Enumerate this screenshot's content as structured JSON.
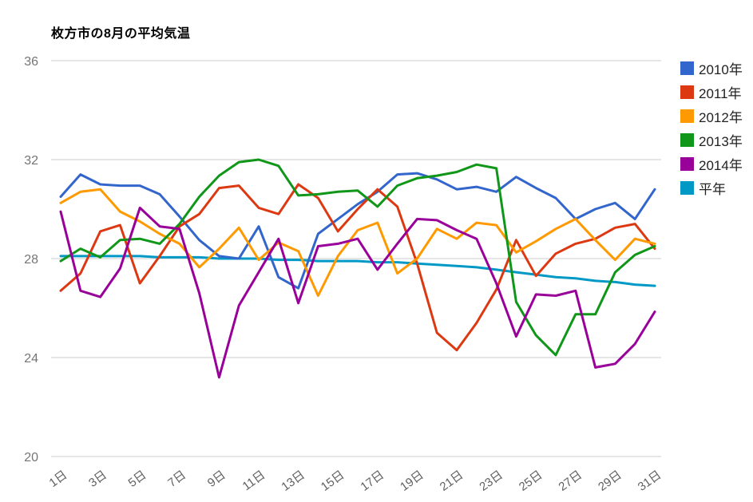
{
  "title": "枚方市の8月の平均気温",
  "chart_data": {
    "type": "line",
    "categories": [
      "1日",
      "2日",
      "3日",
      "4日",
      "5日",
      "6日",
      "7日",
      "8日",
      "9日",
      "10日",
      "11日",
      "12日",
      "13日",
      "14日",
      "15日",
      "16日",
      "17日",
      "18日",
      "19日",
      "20日",
      "21日",
      "22日",
      "23日",
      "24日",
      "25日",
      "26日",
      "27日",
      "28日",
      "29日",
      "30日",
      "31日"
    ],
    "x_tick_shown_every": 2,
    "series": [
      {
        "name": "2010年",
        "color": "#3366CC",
        "values": [
          30.5,
          31.4,
          31.0,
          30.95,
          30.95,
          30.6,
          29.7,
          28.75,
          28.1,
          28.0,
          29.3,
          27.25,
          26.8,
          29.0,
          29.6,
          30.2,
          30.7,
          31.4,
          31.45,
          31.2,
          30.8,
          30.9,
          30.7,
          31.3,
          30.85,
          30.45,
          29.6,
          30.0,
          30.25,
          29.6,
          30.8
        ]
      },
      {
        "name": "2011年",
        "color": "#DC3912",
        "values": [
          26.7,
          27.4,
          29.1,
          29.35,
          27.0,
          28.1,
          29.3,
          29.8,
          30.85,
          30.95,
          30.05,
          29.8,
          31.0,
          30.45,
          29.1,
          30.0,
          30.8,
          30.1,
          27.8,
          25.0,
          24.3,
          25.4,
          26.75,
          28.75,
          27.3,
          28.2,
          28.6,
          28.8,
          29.25,
          29.4,
          28.4
        ]
      },
      {
        "name": "2012年",
        "color": "#FF9900",
        "values": [
          30.25,
          30.7,
          30.8,
          29.9,
          29.5,
          29.0,
          28.6,
          27.65,
          28.4,
          29.25,
          27.95,
          28.65,
          28.3,
          26.5,
          28.1,
          29.15,
          29.45,
          27.4,
          28.0,
          29.2,
          28.8,
          29.45,
          29.35,
          28.25,
          28.7,
          29.2,
          29.6,
          28.75,
          27.95,
          28.8,
          28.6
        ]
      },
      {
        "name": "2013年",
        "color": "#109618",
        "values": [
          27.9,
          28.4,
          28.05,
          28.75,
          28.8,
          28.6,
          29.4,
          30.5,
          31.35,
          31.9,
          32.0,
          31.75,
          30.55,
          30.6,
          30.7,
          30.75,
          30.1,
          30.95,
          31.25,
          31.35,
          31.5,
          31.8,
          31.65,
          26.25,
          24.9,
          24.1,
          25.75,
          25.75,
          27.45,
          28.15,
          28.5
        ]
      },
      {
        "name": "2014年",
        "color": "#990099",
        "values": [
          29.9,
          26.7,
          26.45,
          27.6,
          30.05,
          29.3,
          29.2,
          26.6,
          23.2,
          26.1,
          27.45,
          28.8,
          26.2,
          28.5,
          28.6,
          28.8,
          27.55,
          28.6,
          29.6,
          29.55,
          29.15,
          28.8,
          27.0,
          24.85,
          26.55,
          26.5,
          26.7,
          23.6,
          23.75,
          24.55,
          25.85
        ]
      },
      {
        "name": "平年",
        "color": "#0099C6",
        "values": [
          28.1,
          28.1,
          28.1,
          28.1,
          28.1,
          28.05,
          28.05,
          28.05,
          28.0,
          28.0,
          28.0,
          27.95,
          27.95,
          27.9,
          27.9,
          27.9,
          27.85,
          27.85,
          27.8,
          27.75,
          27.7,
          27.65,
          27.55,
          27.45,
          27.35,
          27.25,
          27.2,
          27.1,
          27.05,
          26.95,
          26.9
        ]
      }
    ],
    "ylim": [
      20,
      36
    ],
    "yticks": [
      20,
      24,
      28,
      32,
      36
    ],
    "grid": true,
    "grid_color": "#cccccc",
    "y_tick_label_color": "#757575",
    "x_tick_label_color": "#616161",
    "legend_position": "right",
    "xlabel": "",
    "ylabel": ""
  }
}
